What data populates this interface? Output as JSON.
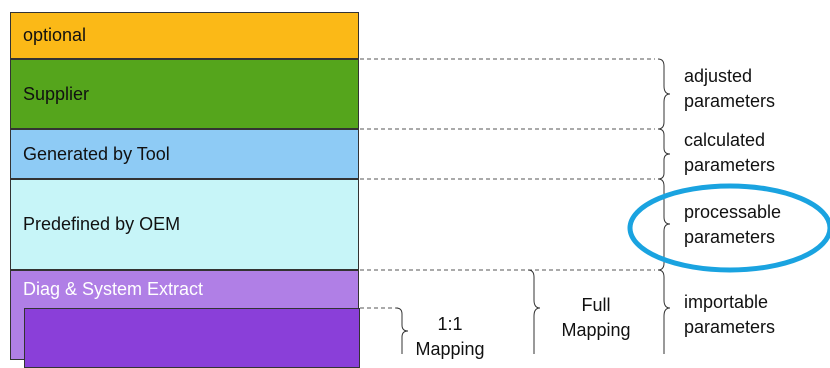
{
  "layers": {
    "optional": "optional",
    "supplier": "Supplier",
    "tool": "Generated by Tool",
    "oem": "Predefined by OEM",
    "diag": "Diag & System Extract"
  },
  "params": {
    "adjusted": [
      "adjusted",
      "parameters"
    ],
    "calculated": [
      "calculated",
      "parameters"
    ],
    "processable": [
      "processable",
      "parameters"
    ],
    "importable": [
      "importable",
      "parameters"
    ]
  },
  "mapping": {
    "full": [
      "Full",
      "Mapping"
    ],
    "one_to_one": [
      "1:1",
      "Mapping"
    ]
  },
  "colors": {
    "optional": "#fbb917",
    "supplier": "#55a51c",
    "tool": "#8ecbf5",
    "oem": "#c7f5f8",
    "diag": "#b07fe6",
    "inner": "#8a3fd9",
    "highlight": "#1aa3e0"
  }
}
